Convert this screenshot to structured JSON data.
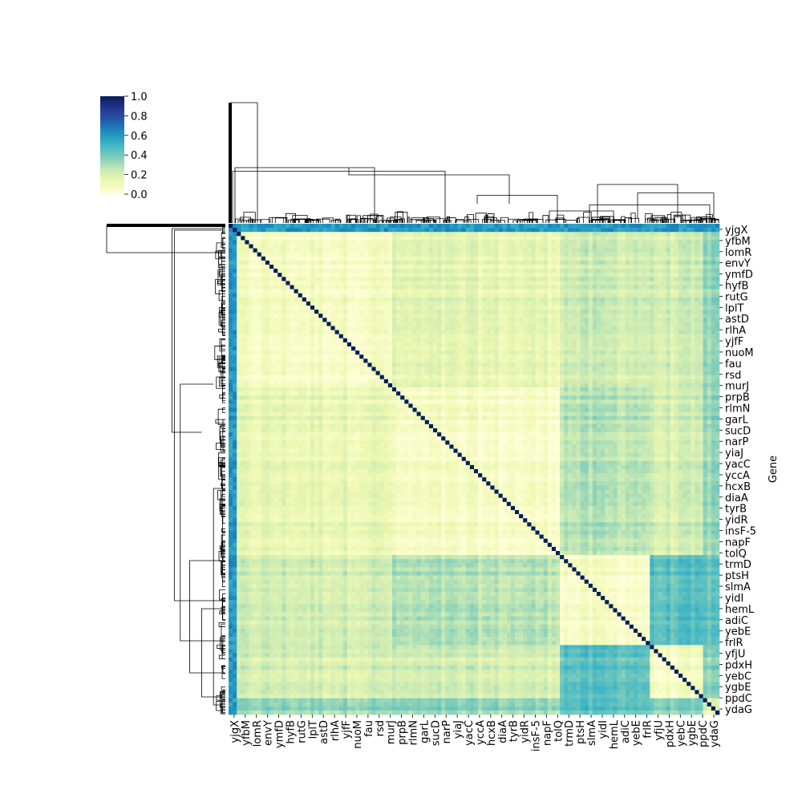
{
  "chart_data": {
    "type": "heatmap",
    "subtype": "clustermap",
    "title": "",
    "xlabel": "",
    "ylabel": "Gene",
    "colormap": "YlGnBu",
    "colormap_stops": [
      "#ffffd9",
      "#edf8b1",
      "#c7e9b4",
      "#7fcdbb",
      "#41b6c4",
      "#1d91c0",
      "#225ea8",
      "#253494",
      "#081d58"
    ],
    "value_range": [
      0.0,
      1.0
    ],
    "colorbar": {
      "ticks": [
        0.0,
        0.2,
        0.4,
        0.6,
        0.8,
        1.0
      ],
      "tick_labels": [
        "0.0",
        "0.2",
        "0.4",
        "0.6",
        "0.8",
        "1.0"
      ]
    },
    "row_labels": [
      "yjgX",
      "yfbM",
      "lomR",
      "envY",
      "ymfD",
      "hyfB",
      "rutG",
      "lplT",
      "astD",
      "rlhA",
      "yjfF",
      "nuoM",
      "fau",
      "rsd",
      "murJ",
      "prpB",
      "rlmN",
      "garL",
      "sucD",
      "narP",
      "yiaJ",
      "yacC",
      "yccA",
      "hcxB",
      "diaA",
      "tyrB",
      "yidR",
      "insF-5",
      "napF",
      "tolQ",
      "trmD",
      "ptsH",
      "slmA",
      "yidI",
      "hemL",
      "adiC",
      "yebE",
      "frlR",
      "yfjU",
      "pdxH",
      "yebC",
      "ygbE",
      "ppdC",
      "ydaG"
    ],
    "col_labels": [
      "yjgX",
      "yfbM",
      "lomR",
      "envY",
      "ymfD",
      "hyfB",
      "rutG",
      "lplT",
      "astD",
      "rlhA",
      "yjfF",
      "nuoM",
      "fau",
      "rsd",
      "murJ",
      "prpB",
      "rlmN",
      "garL",
      "sucD",
      "narP",
      "yiaJ",
      "yacC",
      "yccA",
      "hcxB",
      "diaA",
      "tyrB",
      "yidR",
      "insF-5",
      "napF",
      "tolQ",
      "trmD",
      "ptsH",
      "slmA",
      "yidI",
      "hemL",
      "adiC",
      "yebE",
      "frlR",
      "yfjU",
      "pdxH",
      "yebC",
      "ygbE",
      "ppdC",
      "ydaG"
    ],
    "cluster_bounds": [
      0,
      14.8,
      29.8,
      37.8,
      42.7,
      44
    ],
    "cluster_matrix": [
      [
        0.07,
        0.14,
        0.22,
        0.2,
        0.34
      ],
      [
        0.14,
        0.06,
        0.28,
        0.2,
        0.34
      ],
      [
        0.22,
        0.28,
        0.06,
        0.44,
        0.44
      ],
      [
        0.2,
        0.2,
        0.44,
        0.05,
        0.36
      ],
      [
        0.34,
        0.34,
        0.44,
        0.36,
        0.16
      ]
    ],
    "edge_band_value": 0.6,
    "diagonal_value": 1.0
  }
}
